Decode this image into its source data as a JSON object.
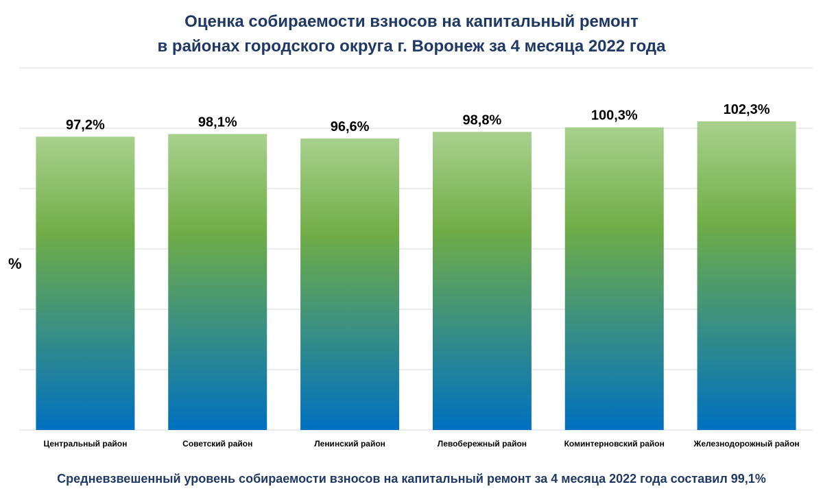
{
  "chart_data": {
    "type": "bar",
    "title_lines": [
      "Оценка собираемости взносов на капитальный ремонт",
      "в районах городского округа г. Воронеж за 4 месяца 2022 года"
    ],
    "ylabel": "%",
    "categories": [
      "Центральный район",
      "Советский район",
      "Ленинский район",
      "Левобережный район",
      "Коминтерновский район",
      "Железнодорожный район"
    ],
    "values": [
      97.2,
      98.1,
      96.6,
      98.8,
      100.3,
      102.3
    ],
    "value_labels": [
      "97,2%",
      "98,1%",
      "96,6%",
      "98,8%",
      "100,3%",
      "102,3%"
    ],
    "ylim": [
      0,
      120
    ],
    "grid": true,
    "bar_gradient": {
      "top": "#a9d18e",
      "middle": "#70ad47",
      "bottom": "#0070c0"
    },
    "footnote": "Средневзвешенный уровень собираемости взносов на капитальный ремонт за 4 месяца 2022 года составил 99,1%"
  }
}
